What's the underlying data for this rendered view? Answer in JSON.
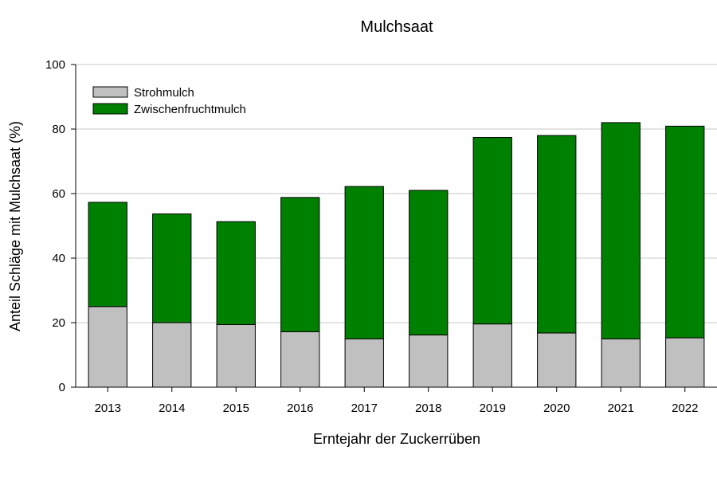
{
  "chart_data": {
    "type": "bar",
    "stacked": true,
    "title": "Mulchsaat",
    "xlabel": "Erntejahr der Zuckerrüben",
    "ylabel": "Anteil Schläge mit Mulchsaat (%)",
    "ylim": [
      0,
      100
    ],
    "yticks": [
      0,
      20,
      40,
      60,
      80,
      100
    ],
    "grid": true,
    "legend_position": "top-left",
    "categories": [
      "2013",
      "2014",
      "2015",
      "2016",
      "2017",
      "2018",
      "2019",
      "2020",
      "2021",
      "2022"
    ],
    "series": [
      {
        "name": "Strohmulch",
        "color": "#c0c0c0",
        "values": [
          25.0,
          20.0,
          19.4,
          17.2,
          15.0,
          16.2,
          19.6,
          16.8,
          15.0,
          15.3
        ]
      },
      {
        "name": "Zwischenfruchtmulch",
        "color": "#008000",
        "values": [
          32.3,
          33.7,
          31.9,
          41.6,
          47.2,
          44.8,
          57.8,
          61.2,
          67.0,
          65.6
        ]
      }
    ]
  }
}
